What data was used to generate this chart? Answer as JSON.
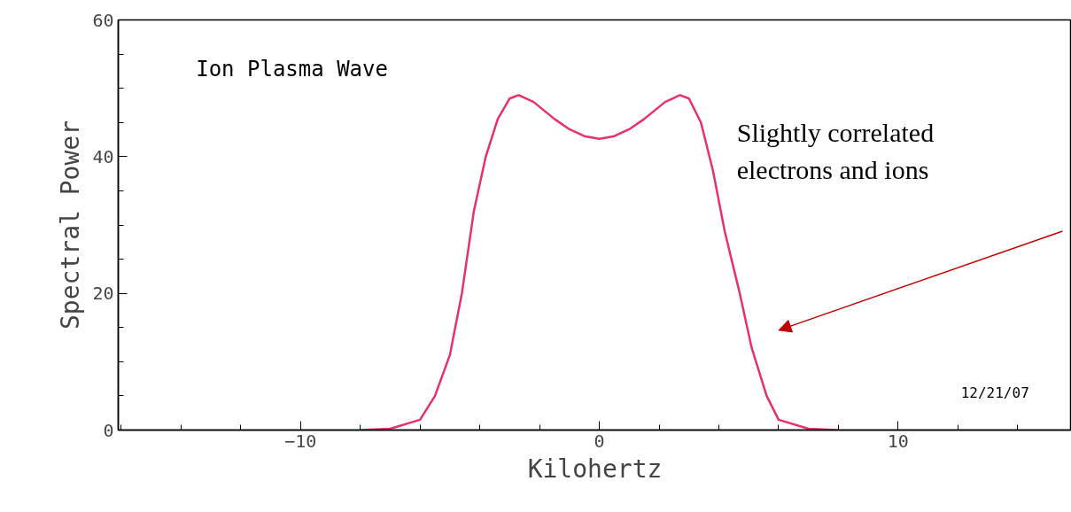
{
  "chart_data": {
    "type": "line",
    "xlabel": "Kilohertz",
    "ylabel": "Spectral Power",
    "xlim": [
      -16.1,
      15.8
    ],
    "ylim": [
      0,
      60
    ],
    "xticks": [
      -10,
      0,
      10
    ],
    "yticks": [
      0,
      20,
      40,
      60
    ],
    "grid": false,
    "marker": "none",
    "line_style": "solid",
    "series": [
      {
        "color": "#e8306a",
        "x": [
          -8,
          -7,
          -6,
          -5.5,
          -5,
          -4.6,
          -4.2,
          -3.8,
          -3.4,
          -3,
          -2.7,
          -2.2,
          -1.5,
          -1,
          -0.5,
          0,
          0.5,
          1,
          1.5,
          2.2,
          2.7,
          3,
          3.4,
          3.8,
          4.2,
          4.7,
          5.1,
          5.6,
          6,
          7,
          8
        ],
        "values": [
          0,
          0.2,
          1.5,
          5,
          11,
          20,
          32,
          40,
          45.5,
          48.5,
          49,
          48,
          45.5,
          44,
          43,
          42.6,
          43,
          44,
          45.5,
          48,
          49,
          48.5,
          45,
          38,
          29,
          20,
          12,
          5,
          1.5,
          0.2,
          0
        ]
      }
    ],
    "annotations": [
      "Ion Plasma Wave",
      "Slightly correlated\nelectrons and ions",
      "12/21/07"
    ]
  }
}
